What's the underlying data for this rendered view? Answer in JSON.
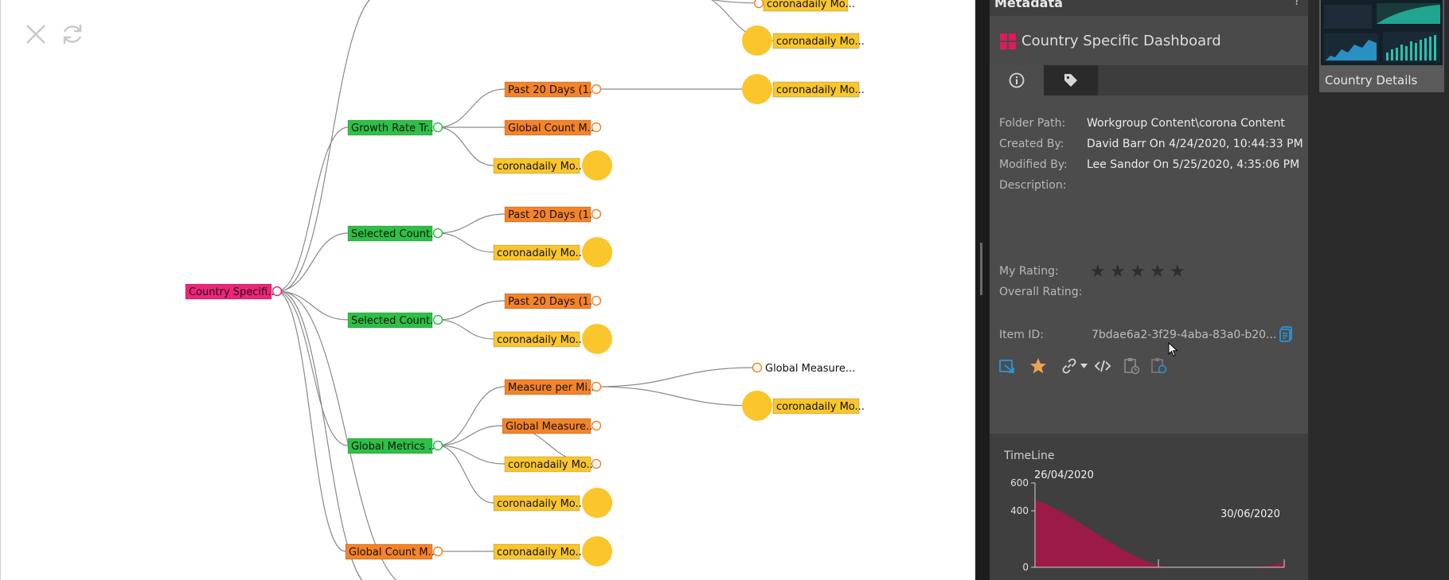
{
  "toolbar": {
    "close_icon": "close-icon",
    "refresh_icon": "refresh-icon"
  },
  "tree": {
    "nodes": [
      {
        "key": "root",
        "label": "Country Specifi...",
        "kind": "pink"
      },
      {
        "key": "growth",
        "label": "Growth Rate Tr...",
        "kind": "green"
      },
      {
        "key": "sel1",
        "label": "Selected Count...",
        "kind": "green"
      },
      {
        "key": "sel2",
        "label": "Selected Count...",
        "kind": "green"
      },
      {
        "key": "global",
        "label": "Global Metrics ...",
        "kind": "green"
      },
      {
        "key": "gcount2",
        "label": "Global Count M...",
        "kind": "orange"
      },
      {
        "key": "past1",
        "label": "Past 20 Days (1...",
        "kind": "orange"
      },
      {
        "key": "gcount1",
        "label": "Global Count M...",
        "kind": "orange"
      },
      {
        "key": "cdm1",
        "label": "coronadaily Mo...",
        "kind": "yellow"
      },
      {
        "key": "past2",
        "label": "Past 20 Days (1...",
        "kind": "orange"
      },
      {
        "key": "cdm2",
        "label": "coronadaily Mo...",
        "kind": "yellow"
      },
      {
        "key": "past3",
        "label": "Past 20 Days (1...",
        "kind": "orange"
      },
      {
        "key": "cdm3",
        "label": "coronadaily Mo...",
        "kind": "yellow"
      },
      {
        "key": "mpm",
        "label": "Measure per Mi...",
        "kind": "orange"
      },
      {
        "key": "gmeas",
        "label": "Global Measure...",
        "kind": "orange"
      },
      {
        "key": "cdm4",
        "label": "coronadaily Mo...",
        "kind": "yellow"
      },
      {
        "key": "cdm5",
        "label": "coronadaily Mo...",
        "kind": "yellow"
      },
      {
        "key": "cdm6",
        "label": "coronadaily Mo...",
        "kind": "yellow"
      },
      {
        "key": "topA",
        "label": "coronadaily Mo...",
        "kind": "yellow"
      },
      {
        "key": "topB",
        "label": "coronadaily Mo...",
        "kind": "yellow"
      },
      {
        "key": "r_past1",
        "label": "coronadaily Mo...",
        "kind": "yellow"
      },
      {
        "key": "gm_text",
        "label": "Global Measure...",
        "kind": "plain"
      },
      {
        "key": "r_mpm",
        "label": "coronadaily Mo...",
        "kind": "yellow"
      }
    ]
  },
  "metadata": {
    "header_title": "Metadata",
    "help": "?",
    "item_title": "Country Specific Dashboard",
    "tabs": [
      "info-icon",
      "tag-icon"
    ],
    "fields": {
      "folder_label": "Folder Path:",
      "folder_value": "Workgroup Content\\corona Content",
      "created_label": "Created By:",
      "created_value": "David Barr On 4/24/2020, 10:44:33 PM",
      "modified_label": "Modified By:",
      "modified_value": "Lee Sandor On 5/25/2020, 4:35:06 PM",
      "description_label": "Description:",
      "my_rating_label": "My Rating:",
      "overall_rating_label": "Overall Rating:",
      "item_id_label": "Item ID:",
      "item_id_value": "7bdae6a2-3f29-4aba-83a0-b20..."
    },
    "my_rating": 0,
    "stars": [
      "★",
      "★",
      "★",
      "★",
      "★"
    ],
    "actions": [
      "open-icon",
      "favorite-icon",
      "link-icon",
      "embed-code-icon",
      "schedule-icon",
      "subscribe-icon"
    ]
  },
  "timeline": {
    "title": "TimeLine",
    "start_label": "26/04/2020",
    "end_label": "30/06/2020",
    "y_ticks": [
      "600",
      "400",
      "0"
    ],
    "area_color": "#9b1a48"
  },
  "thumbnail": {
    "label": "Country Details"
  },
  "colors": {
    "pink": "#f0237a",
    "green": "#2dc046",
    "orange": "#f58327",
    "yellow": "#fbc62b",
    "accent": "#2b93d6"
  }
}
